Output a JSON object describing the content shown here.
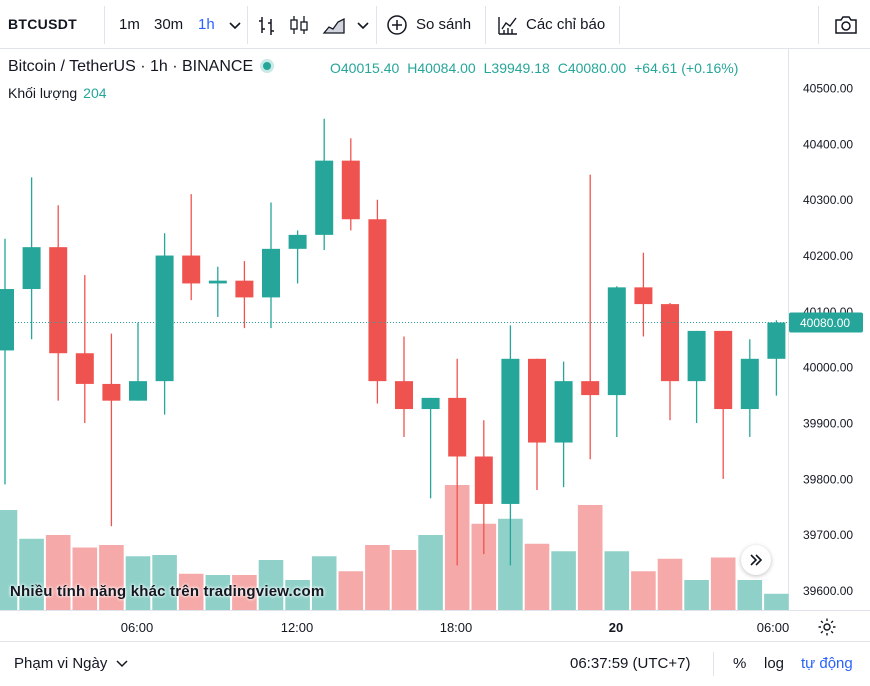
{
  "toolbar": {
    "symbol": "BTCUSDT",
    "intervals": [
      "1m",
      "30m",
      "1h"
    ],
    "active_interval": "1h",
    "compare_label": "So sánh",
    "indicators_label": "Các chỉ báo"
  },
  "legend": {
    "title": "Bitcoin / TetherUS · 1h · BINANCE",
    "open_key": "O",
    "open": "40015.40",
    "high_key": "H",
    "high": "40084.00",
    "low_key": "L",
    "low": "39949.18",
    "close_key": "C",
    "close": "40080.00",
    "change": "+64.61 (+0.16%)",
    "volume_label": "Khối lượng",
    "volume_value": "204"
  },
  "watermark": "Nhiều tính năng khác trên tradingview.com",
  "price_axis": {
    "labels": [
      "40500.00",
      "40400.00",
      "40300.00",
      "40200.00",
      "40100.00",
      "40000.00",
      "39900.00",
      "39800.00",
      "39700.00",
      "39600.00"
    ],
    "current_price": "40080.00"
  },
  "time_axis": {
    "labels": [
      "06:00",
      "12:00",
      "18:00",
      "20",
      "06:00"
    ]
  },
  "bottom_bar": {
    "range_label": "Phạm vi Ngày",
    "clock": "06:37:59 (UTC+7)",
    "percent": "%",
    "log": "log",
    "auto": "tự động"
  },
  "colors": {
    "up": "#26a69a",
    "down": "#ef5350",
    "up_volume": "#8fd1c9",
    "down_volume": "#f5a9a8",
    "accent": "#2962ff"
  },
  "chart_data": {
    "type": "candlestick",
    "ylim": [
      39565,
      40570
    ],
    "candles": [
      {
        "o": 40030,
        "h": 40230,
        "l": 39790,
        "c": 40140,
        "v": 0.8
      },
      {
        "o": 40140,
        "h": 40340,
        "l": 40050,
        "c": 40215,
        "v": 0.57
      },
      {
        "o": 40215,
        "h": 40290,
        "l": 39940,
        "c": 40025,
        "v": 0.6
      },
      {
        "o": 40025,
        "h": 40165,
        "l": 39900,
        "c": 39970,
        "v": 0.5
      },
      {
        "o": 39970,
        "h": 40060,
        "l": 39715,
        "c": 39940,
        "v": 0.52
      },
      {
        "o": 39940,
        "h": 40080,
        "l": 39940,
        "c": 39975,
        "v": 0.43
      },
      {
        "o": 39975,
        "h": 40240,
        "l": 39915,
        "c": 40200,
        "v": 0.44
      },
      {
        "o": 40200,
        "h": 40310,
        "l": 40120,
        "c": 40150,
        "v": 0.29
      },
      {
        "o": 40150,
        "h": 40180,
        "l": 40090,
        "c": 40155,
        "v": 0.28
      },
      {
        "o": 40155,
        "h": 40190,
        "l": 40070,
        "c": 40125,
        "v": 0.28
      },
      {
        "o": 40125,
        "h": 40295,
        "l": 40070,
        "c": 40212,
        "v": 0.4
      },
      {
        "o": 40212,
        "h": 40245,
        "l": 40150,
        "c": 40237,
        "v": 0.24
      },
      {
        "o": 40237,
        "h": 40445,
        "l": 40210,
        "c": 40370,
        "v": 0.43
      },
      {
        "o": 40370,
        "h": 40410,
        "l": 40245,
        "c": 40265,
        "v": 0.31
      },
      {
        "o": 40265,
        "h": 40300,
        "l": 39935,
        "c": 39975,
        "v": 0.52
      },
      {
        "o": 39975,
        "h": 40055,
        "l": 39875,
        "c": 39925,
        "v": 0.48
      },
      {
        "o": 39925,
        "h": 39945,
        "l": 39765,
        "c": 39945,
        "v": 0.6
      },
      {
        "o": 39945,
        "h": 40015,
        "l": 39645,
        "c": 39840,
        "v": 1.0
      },
      {
        "o": 39840,
        "h": 39905,
        "l": 39665,
        "c": 39755,
        "v": 0.69
      },
      {
        "o": 39755,
        "h": 40075,
        "l": 39645,
        "c": 40015,
        "v": 0.73
      },
      {
        "o": 40015,
        "h": 40015,
        "l": 39780,
        "c": 39865,
        "v": 0.53
      },
      {
        "o": 39865,
        "h": 40010,
        "l": 39785,
        "c": 39975,
        "v": 0.47
      },
      {
        "o": 39975,
        "h": 40345,
        "l": 39835,
        "c": 39950,
        "v": 0.84
      },
      {
        "o": 39950,
        "h": 40145,
        "l": 39875,
        "c": 40143,
        "v": 0.47
      },
      {
        "o": 40143,
        "h": 40205,
        "l": 40055,
        "c": 40113,
        "v": 0.31
      },
      {
        "o": 40113,
        "h": 40115,
        "l": 39905,
        "c": 39975,
        "v": 0.41
      },
      {
        "o": 39975,
        "h": 40065,
        "l": 39900,
        "c": 40065,
        "v": 0.24
      },
      {
        "o": 40065,
        "h": 40065,
        "l": 39800,
        "c": 39925,
        "v": 0.42
      },
      {
        "o": 39925,
        "h": 40050,
        "l": 39875,
        "c": 40015,
        "v": 0.24
      },
      {
        "o": 40015,
        "h": 40084,
        "l": 39949,
        "c": 40080,
        "v": 0.13
      }
    ]
  }
}
